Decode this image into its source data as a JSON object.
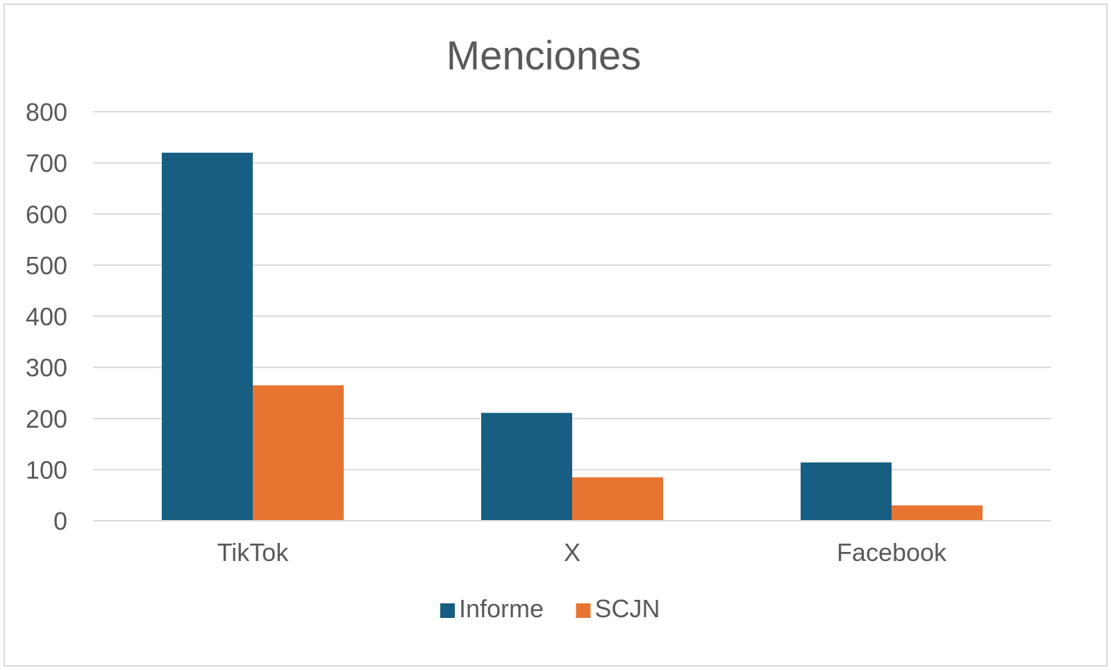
{
  "chart_data": {
    "type": "bar",
    "title": "Menciones",
    "categories": [
      "TikTok",
      "X",
      "Facebook"
    ],
    "series": [
      {
        "name": "Informe",
        "values": [
          720,
          211,
          114
        ],
        "color": "#175e82"
      },
      {
        "name": "SCJN",
        "values": [
          265,
          85,
          30
        ],
        "color": "#e87432"
      }
    ],
    "ylim": [
      0,
      800
    ],
    "yticks": [
      "0",
      "100",
      "200",
      "300",
      "400",
      "500",
      "600",
      "700",
      "800"
    ],
    "grid": true,
    "legend_position": "bottom"
  }
}
